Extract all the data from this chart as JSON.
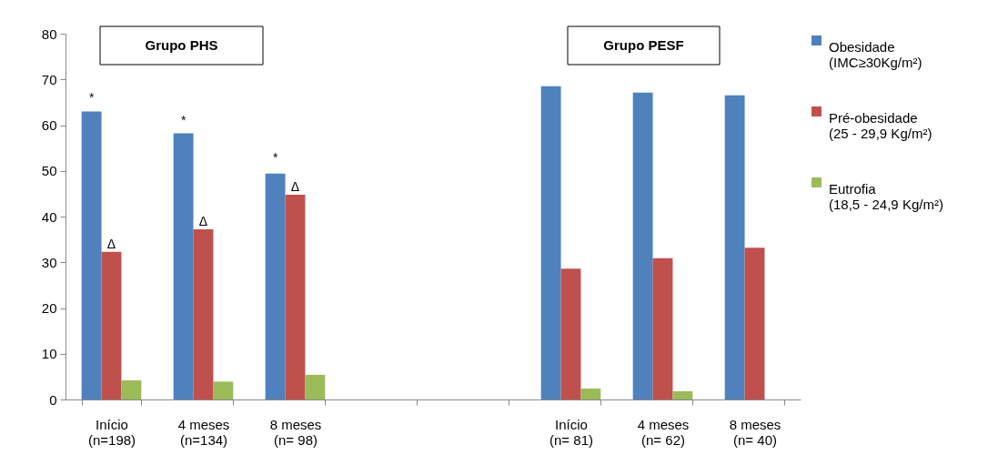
{
  "chart_data": {
    "type": "bar",
    "categories": [
      "Início\n(n=198)",
      "4 meses\n(n=134)",
      "8 meses\n(n= 98)",
      null,
      null,
      "Início\n(n= 81)",
      "4 meses\n(n= 62)",
      "8 meses\n(n= 40)"
    ],
    "series": [
      {
        "name": "Obesidade\n(IMC≥30Kg/m²)",
        "color": "#4f81bd",
        "values": [
          63.0,
          58.2,
          49.4,
          null,
          null,
          68.5,
          67.1,
          66.5
        ]
      },
      {
        "name": "Pré-obesidade\n(25 - 29,9 Kg/m²)",
        "color": "#c0504d",
        "values": [
          32.3,
          37.2,
          44.8,
          null,
          null,
          28.6,
          30.9,
          33.2
        ]
      },
      {
        "name": "Eutrofia\n(18,5 - 24,9 Kg/m²)",
        "color": "#9bbb59",
        "values": [
          4.2,
          3.9,
          5.4,
          null,
          null,
          2.4,
          1.8,
          null
        ]
      }
    ],
    "ylim": [
      0,
      80
    ],
    "yticks": [
      0,
      10,
      20,
      30,
      40,
      50,
      60,
      70,
      80
    ],
    "grid": false,
    "legend": "right",
    "annotations": [
      "Grupo PHS",
      "Grupo PESF",
      "*",
      "*",
      "*",
      {
        "text": "Δ",
        "x": "Início\n(n=198)",
        "y": 32.3
      },
      {
        "text": "Δ",
        "x": "4 meses\n(n=134)",
        "y": 37.2
      },
      {
        "text": "Δ",
        "x": "8 meses\n(n= 98)",
        "y": 44.8
      }
    ]
  }
}
